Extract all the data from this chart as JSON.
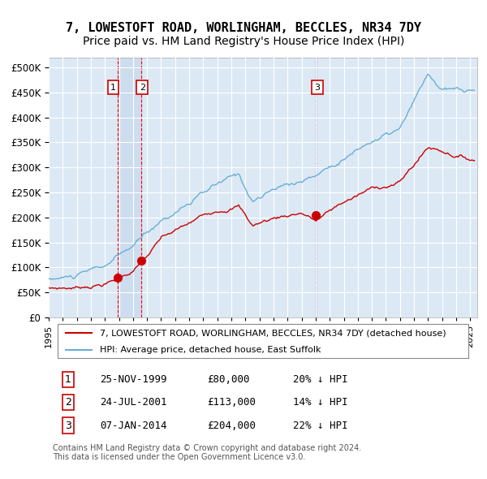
{
  "title": "7, LOWESTOFT ROAD, WORLINGHAM, BECCLES, NR34 7DY",
  "subtitle": "Price paid vs. HM Land Registry's House Price Index (HPI)",
  "background_color": "#ffffff",
  "plot_bg_color": "#dce9f5",
  "grid_color": "#ffffff",
  "ylabel": "",
  "ylim": [
    0,
    520000
  ],
  "yticks": [
    0,
    50000,
    100000,
    150000,
    200000,
    250000,
    300000,
    350000,
    400000,
    450000,
    500000
  ],
  "xlim_start": 1995.0,
  "xlim_end": 2025.5,
  "sale_dates": [
    1999.9,
    2001.56,
    2014.02
  ],
  "sale_prices": [
    80000,
    113000,
    204000
  ],
  "sale_labels": [
    "1",
    "2",
    "3"
  ],
  "vline_color": "#ff0000",
  "vspan_color": "#c8d8ee",
  "vspan_alpha": 0.7,
  "sale_dot_color": "#cc0000",
  "hpi_line_color": "#6aaed6",
  "price_line_color": "#cc0000",
  "legend_text_1": "7, LOWESTOFT ROAD, WORLINGHAM, BECCLES, NR34 7DY (detached house)",
  "legend_text_2": "HPI: Average price, detached house, East Suffolk",
  "table_rows": [
    [
      "1",
      "25-NOV-1999",
      "£80,000",
      "20% ↓ HPI"
    ],
    [
      "2",
      "24-JUL-2001",
      "£113,000",
      "14% ↓ HPI"
    ],
    [
      "3",
      "07-JAN-2014",
      "£204,000",
      "22% ↓ HPI"
    ]
  ],
  "footer": "Contains HM Land Registry data © Crown copyright and database right 2024.\nThis data is licensed under the Open Government Licence v3.0.",
  "title_fontsize": 11,
  "subtitle_fontsize": 10,
  "tick_fontsize": 8.5,
  "label_box_color": "#ffffff",
  "label_box_edgecolor": "#cc0000"
}
